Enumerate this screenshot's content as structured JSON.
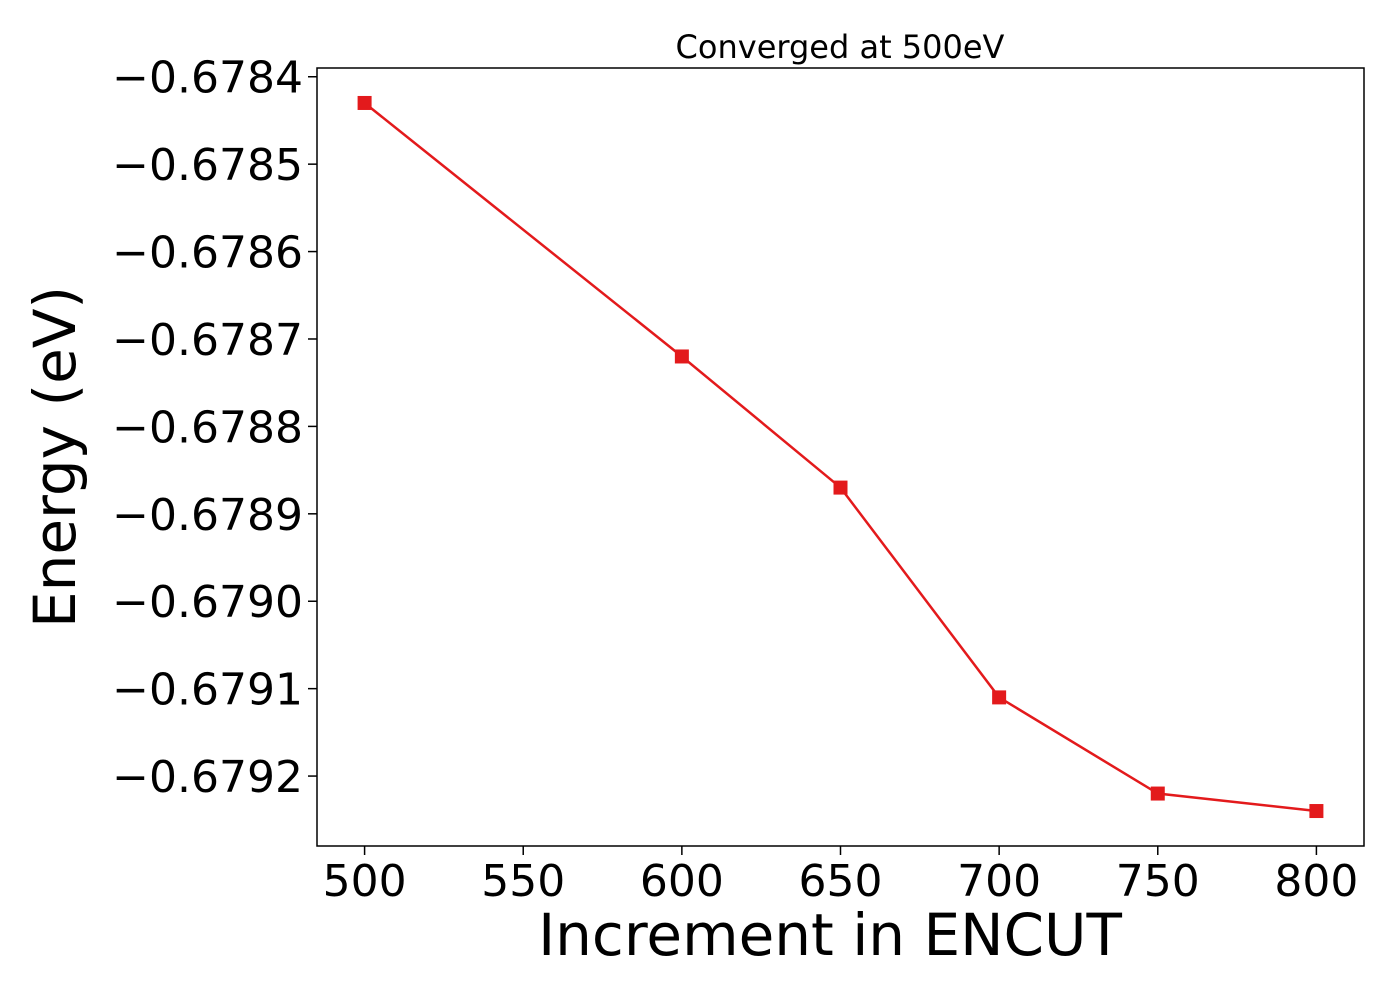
{
  "chart_data": {
    "type": "line",
    "title": "Converged at 500eV",
    "xlabel": "Increment in ENCUT",
    "ylabel": "Energy (eV)",
    "x": [
      500,
      600,
      650,
      700,
      750,
      800
    ],
    "series": [
      {
        "values": [
          -0.67843,
          -0.67872,
          -0.67887,
          -0.67911,
          -0.67922,
          -0.67924
        ],
        "color": "#e31a1c",
        "marker": "square"
      }
    ],
    "xlim": [
      485,
      815
    ],
    "ylim": [
      -0.67928,
      -0.67839
    ],
    "x_ticks": [
      500,
      550,
      600,
      650,
      700,
      750,
      800
    ],
    "x_tick_labels": [
      "500",
      "550",
      "600",
      "650",
      "700",
      "750",
      "800"
    ],
    "y_ticks": [
      -0.6784,
      -0.6785,
      -0.6786,
      -0.6787,
      -0.6788,
      -0.6789,
      -0.679,
      -0.6791,
      -0.6792
    ],
    "y_tick_labels": [
      "−0.6784",
      "−0.6785",
      "−0.6786",
      "−0.6787",
      "−0.6788",
      "−0.6789",
      "−0.6790",
      "−0.6791",
      "−0.6792"
    ],
    "grid": false,
    "legend": "none"
  }
}
